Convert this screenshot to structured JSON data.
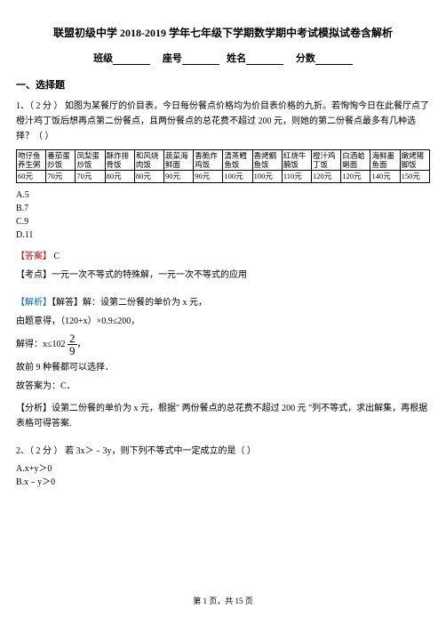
{
  "title": "联盟初级中学 2018-2019 学年七年级下学期数学期中考试模拟试卷含解析",
  "header": {
    "class_l": "班级",
    "seat_l": "座号",
    "name_l": "姓名",
    "score_l": "分数"
  },
  "section1": "一、选择题",
  "q1": {
    "num": "1、（ 2 分 ） 如图为某餐厅的价目表，今日每份餐点价格均为价目表价格的九折。若恂恂今日在此餐厅点了橙汁鸡丁饭后想再点第二份餐点，且两份餐点的总花费不超过 200 元，则她的第二份餐点最多有几种选择？（    ）",
    "table": {
      "r1": [
        "吻仔鱼养生粥",
        "番茄蛋炒饭",
        "凤梨蛋炒饭",
        "酥炸排骨饭",
        "和风烧肉饭",
        "蔬菜海鲜面",
        "香脆炸鸡饭",
        "清蒸鳕鱼饭",
        "香烤鲷鱼饭",
        "红烧牛腩饭",
        "橙汁鸡丁饭",
        "白酒蛤蜊面",
        "海鲜墨鱼面",
        "嫩烤猪脚饭"
      ],
      "r2": [
        "60元",
        "70元",
        "70元",
        "80元",
        "80元",
        "90元",
        "90元",
        "100元",
        "100元",
        "110元",
        "120元",
        "120元",
        "140元",
        "150元"
      ]
    },
    "choices": {
      "a": "A.5",
      "b": "B.7",
      "c": "C.9",
      "d": "D.11"
    },
    "ans_l": "【答案】",
    "ans_v": "C",
    "kd_l": "【考点】",
    "kd_v": "一元一次不等式的特殊解，一元一次不等式的应用",
    "jx_l": "【解析】",
    "jx_v": "【解答】解：设第二份餐的单价为 x 元，",
    "line1": "由题意得，（120+x）×0.9≤200，",
    "line2_pre": "解得：x≤102",
    "frac_n": "2",
    "frac_d": "9",
    "line2_post": "，",
    "line3": "故前 9 种餐都可以选择．",
    "line4": "故答案为：C．",
    "fx": "【分析】设第二份餐的单价为 x 元，根据\" 两份餐点的总花费不超过 200 元 \"列不等式，求出解集，再根据表格可得答案."
  },
  "q2": {
    "num": "2、（ 2 分 ） 若 3x＞﹣3y，则下列不等式中一定成立的是（   ）",
    "a": "A.x+y＞0",
    "b": "B.x﹣y＞0"
  },
  "footer": "第 1 页，共 15 页"
}
